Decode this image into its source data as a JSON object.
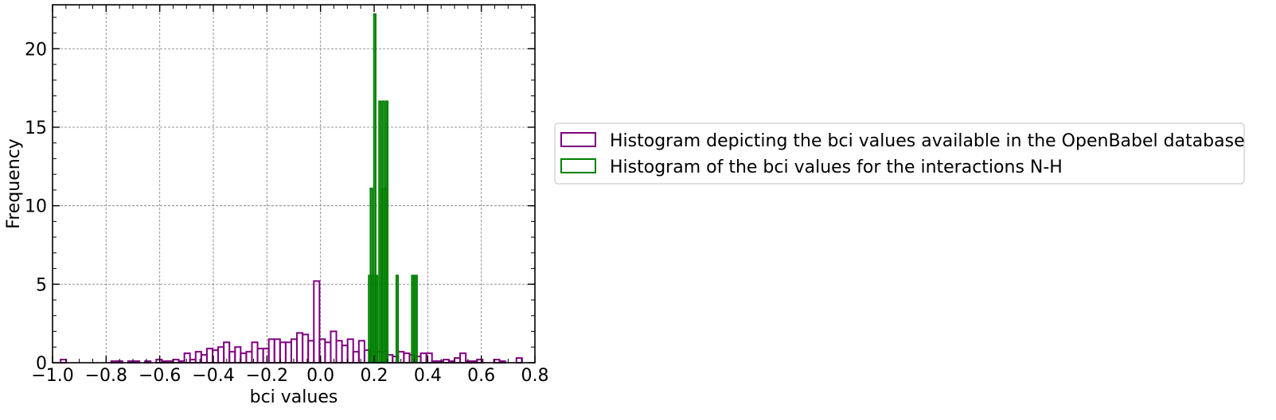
{
  "chart_data": {
    "type": "histogram",
    "title": "",
    "xlabel": "bci values",
    "ylabel": "Frequency",
    "xlim": [
      -1.0,
      0.8
    ],
    "ylim": [
      0,
      22.8
    ],
    "xticks": [
      -1.0,
      -0.8,
      -0.6,
      -0.4,
      -0.2,
      0.0,
      0.2,
      0.4,
      0.6,
      0.8
    ],
    "xtick_labels": [
      "−1.0",
      "−0.8",
      "−0.6",
      "−0.4",
      "−0.2",
      "0.0",
      "0.2",
      "0.4",
      "0.6",
      "0.8"
    ],
    "yticks": [
      0,
      5,
      10,
      15,
      20
    ],
    "ytick_labels": [
      "0",
      "5",
      "10",
      "15",
      "20"
    ],
    "grid": true,
    "legend_position": "right, outside plot",
    "series": [
      {
        "name": "Histogram depicting the bci values available in the OpenBabel database",
        "color": "#800080",
        "bin_edges": [
          -0.97,
          -0.949,
          -0.928,
          -0.907,
          -0.886,
          -0.865,
          -0.844,
          -0.823,
          -0.802,
          -0.781,
          -0.76,
          -0.739,
          -0.718,
          -0.697,
          -0.676,
          -0.655,
          -0.634,
          -0.613,
          -0.592,
          -0.571,
          -0.55,
          -0.529,
          -0.508,
          -0.487,
          -0.466,
          -0.445,
          -0.424,
          -0.403,
          -0.382,
          -0.361,
          -0.34,
          -0.319,
          -0.298,
          -0.277,
          -0.256,
          -0.235,
          -0.214,
          -0.193,
          -0.172,
          -0.151,
          -0.13,
          -0.109,
          -0.088,
          -0.067,
          -0.046,
          -0.025,
          -0.004,
          0.017,
          0.038,
          0.059,
          0.08,
          0.101,
          0.122,
          0.143,
          0.164,
          0.185,
          0.206,
          0.227,
          0.248,
          0.269,
          0.29,
          0.311,
          0.332,
          0.353,
          0.374,
          0.395,
          0.416,
          0.437,
          0.458,
          0.479,
          0.5,
          0.521,
          0.542,
          0.563,
          0.584,
          0.605,
          0.626,
          0.647,
          0.668,
          0.689,
          0.71,
          0.731,
          0.752
        ],
        "frequencies": [
          0.2,
          0.0,
          0.0,
          0.0,
          0.0,
          0.0,
          0.0,
          0.0,
          0.0,
          0.1,
          0.1,
          0.0,
          0.1,
          0.1,
          0.0,
          0.1,
          0.0,
          0.2,
          0.1,
          0.1,
          0.2,
          0.1,
          0.6,
          0.2,
          0.7,
          0.5,
          0.9,
          0.8,
          1.0,
          1.3,
          0.7,
          1.0,
          0.6,
          0.7,
          1.3,
          0.9,
          0.9,
          1.5,
          1.5,
          1.3,
          1.3,
          1.5,
          1.9,
          1.8,
          1.4,
          5.2,
          1.5,
          1.3,
          2.0,
          1.4,
          1.1,
          1.5,
          0.7,
          1.4,
          0.8,
          0.7,
          0.7,
          0.7,
          0.5,
          0.4,
          0.7,
          0.6,
          0.5,
          0.4,
          0.6,
          0.6,
          0.1,
          0.1,
          0.2,
          0.1,
          0.3,
          0.6,
          0.1,
          0.1,
          0.2,
          0.0,
          0.0,
          0.2,
          0.1,
          0.0,
          0.0,
          0.3
        ]
      },
      {
        "name": "Histogram of the bci values for the interactions N-H",
        "color": "#008000",
        "bin_edges": [
          0.18,
          0.1864,
          0.1929,
          0.1993,
          0.2057,
          0.2121,
          0.2186,
          0.225,
          0.2314,
          0.2379,
          0.2443,
          0.2507,
          0.2571,
          0.2636,
          0.27,
          0.2764,
          0.2829,
          0.2893,
          0.2957,
          0.3021,
          0.3086,
          0.315,
          0.3214,
          0.3279,
          0.3343,
          0.3407,
          0.3471,
          0.3536,
          0.36
        ],
        "frequencies": [
          5.55,
          11.1,
          5.55,
          22.2,
          5.55,
          0.0,
          16.65,
          11.1,
          16.65,
          11.1,
          16.65,
          0.0,
          0.0,
          0.0,
          0.0,
          0.0,
          5.55,
          0.0,
          0.0,
          0.0,
          0.0,
          0.0,
          0.0,
          0.0,
          0.0,
          5.55,
          5.55,
          5.55
        ]
      }
    ]
  }
}
